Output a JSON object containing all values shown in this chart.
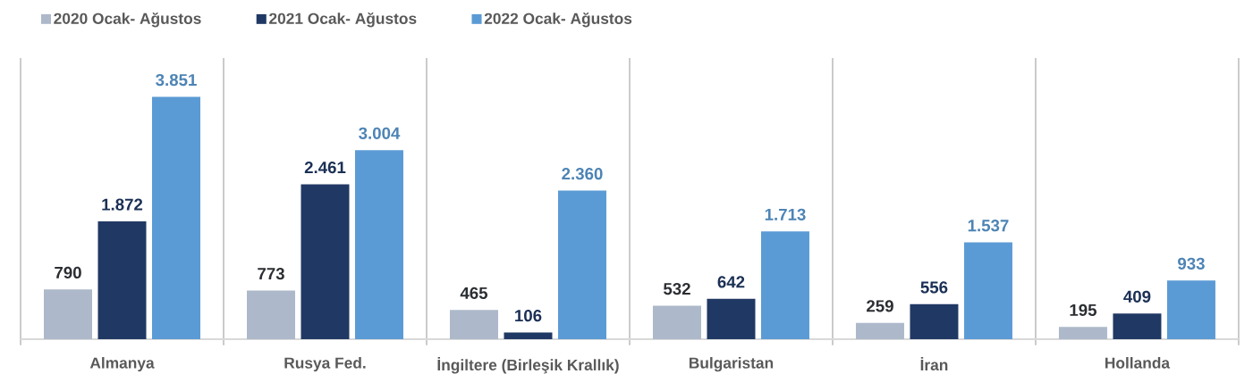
{
  "chart_data": {
    "type": "bar",
    "categories": [
      "Almanya",
      "Rusya Fed.",
      "İngiltere (Birleşik Krallık)",
      "Bulgaristan",
      "İran",
      "Hollanda"
    ],
    "series": [
      {
        "name": "2020 Ocak- Ağustos",
        "color": "#adb9ca",
        "values": [
          790,
          773,
          465,
          532,
          259,
          195
        ],
        "value_labels": [
          "790",
          "773",
          "465",
          "532",
          "259",
          "195"
        ]
      },
      {
        "name": "2021 Ocak- Ağustos",
        "color": "#203864",
        "values": [
          1872,
          2461,
          106,
          642,
          556,
          409
        ],
        "value_labels": [
          "1.872",
          "2.461",
          "106",
          "642",
          "556",
          "409"
        ]
      },
      {
        "name": "2022 Ocak- Ağustos",
        "color": "#5b9bd5",
        "values": [
          3851,
          3004,
          2360,
          1713,
          1537,
          933
        ],
        "value_labels": [
          "3.851",
          "3.004",
          "2.360",
          "1.713",
          "1.537",
          "933"
        ]
      }
    ],
    "grid": "x",
    "legend": "top left",
    "tick_labels": "x"
  }
}
